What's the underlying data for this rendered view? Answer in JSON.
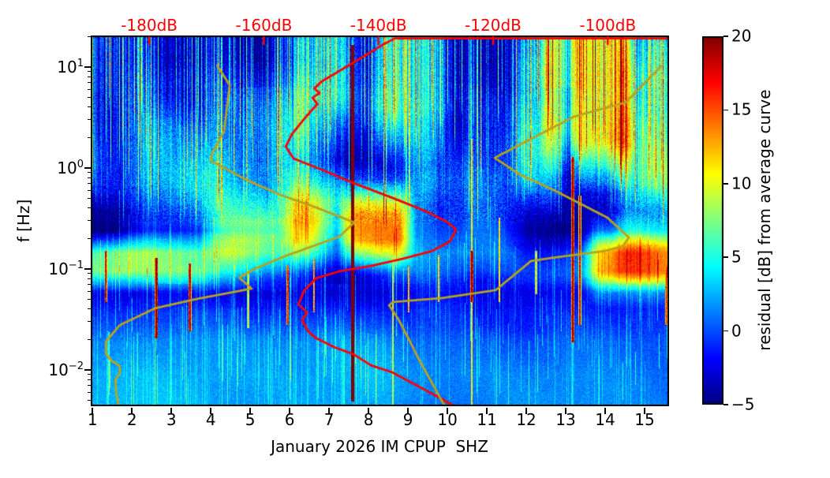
{
  "chart_data": {
    "type": "heatmap",
    "title": "",
    "xlabel": "January 2026 IM CPUP  SHZ",
    "ylabel": "f [Hz]",
    "x_axis": {
      "range_days": [
        0.955,
        15.62
      ],
      "tick_values": [
        1,
        2,
        3,
        4,
        5,
        6,
        7,
        8,
        9,
        10,
        11,
        12,
        13,
        14,
        15
      ]
    },
    "y_axis": {
      "scale": "log",
      "range_hz": [
        0.00437,
        20.5
      ],
      "major_tick_exponents": [
        1,
        0,
        -1,
        -2
      ]
    },
    "top_axis": {
      "color": "#ff0000",
      "range_db": [
        -190.2,
        -89.3
      ],
      "labels": [
        {
          "text": "-180dB",
          "db": -180
        },
        {
          "text": "-160dB",
          "db": -160
        },
        {
          "text": "-140dB",
          "db": -140
        },
        {
          "text": "-120dB",
          "db": -120
        },
        {
          "text": "-100dB",
          "db": -100
        }
      ]
    },
    "colorbar": {
      "label": "residual [dB] from average curve",
      "colormap": "jet",
      "range": [
        -5,
        20
      ],
      "tick_values": [
        20,
        15,
        10,
        5,
        0,
        -5
      ]
    },
    "series": [
      {
        "name": "red-average-curve",
        "color": "#ff0000",
        "width": 2.8,
        "points_day_hz": [
          [
            15.62,
            19.2
          ],
          [
            8.66,
            19.2
          ],
          [
            8.26,
            15.7
          ],
          [
            7.86,
            12.6
          ],
          [
            7.26,
            9.12
          ],
          [
            6.82,
            7.23
          ],
          [
            6.62,
            6.15
          ],
          [
            6.76,
            5.52
          ],
          [
            6.58,
            4.96
          ],
          [
            6.7,
            4.3
          ],
          [
            6.38,
            3.1
          ],
          [
            6.06,
            2.17
          ],
          [
            5.9,
            1.63
          ],
          [
            6.1,
            1.24
          ],
          [
            6.86,
            0.947
          ],
          [
            7.66,
            0.698
          ],
          [
            8.66,
            0.496
          ],
          [
            9.46,
            0.372
          ],
          [
            9.98,
            0.294
          ],
          [
            10.22,
            0.246
          ],
          [
            10.06,
            0.187
          ],
          [
            9.62,
            0.151
          ],
          [
            8.86,
            0.126
          ],
          [
            8.06,
            0.107
          ],
          [
            7.26,
            0.0947
          ],
          [
            6.66,
            0.0806
          ],
          [
            6.36,
            0.0604
          ],
          [
            6.22,
            0.0445
          ],
          [
            6.44,
            0.0372
          ],
          [
            6.32,
            0.031
          ],
          [
            6.48,
            0.0237
          ],
          [
            6.68,
            0.0205
          ],
          [
            7.16,
            0.0166
          ],
          [
            7.62,
            0.0143
          ],
          [
            8.06,
            0.0111
          ],
          [
            8.6,
            0.00947
          ],
          [
            9.16,
            0.00723
          ],
          [
            9.72,
            0.00552
          ],
          [
            10.22,
            0.00429
          ]
        ]
      },
      {
        "name": "olive-average-curve-left",
        "color": "#b9a21c",
        "width": 2.8,
        "points_day_hz": [
          [
            4.16,
            10.35
          ],
          [
            4.48,
            6.61
          ],
          [
            4.4,
            3.72
          ],
          [
            4.34,
            2.33
          ],
          [
            4.02,
            1.36
          ],
          [
            4.0,
            1.18
          ],
          [
            4.46,
            0.947
          ],
          [
            4.9,
            0.764
          ],
          [
            5.76,
            0.542
          ],
          [
            6.66,
            0.407
          ],
          [
            7.28,
            0.328
          ],
          [
            7.64,
            0.289
          ],
          [
            7.26,
            0.209
          ],
          [
            5.86,
            0.133
          ],
          [
            5.1,
            0.1
          ],
          [
            4.72,
            0.0821
          ],
          [
            5.04,
            0.0638
          ],
          [
            3.66,
            0.0505
          ],
          [
            2.58,
            0.0407
          ],
          [
            1.7,
            0.0279
          ],
          [
            1.34,
            0.0191
          ],
          [
            1.34,
            0.0144
          ],
          [
            1.48,
            0.0124
          ],
          [
            1.68,
            0.011
          ],
          [
            1.7,
            0.00931
          ],
          [
            1.58,
            0.00806
          ],
          [
            1.6,
            0.00615
          ],
          [
            1.66,
            0.00445
          ]
        ]
      },
      {
        "name": "olive-average-curve-right",
        "color": "#b9a21c",
        "width": 2.8,
        "points_day_hz": [
          [
            15.42,
            10.2
          ],
          [
            14.52,
            4.45
          ],
          [
            13.2,
            3.22
          ],
          [
            11.2,
            1.26
          ],
          [
            11.86,
            0.85
          ],
          [
            12.66,
            0.615
          ],
          [
            14.06,
            0.322
          ],
          [
            14.6,
            0.205
          ],
          [
            14.46,
            0.169
          ],
          [
            14.0,
            0.151
          ],
          [
            12.66,
            0.129
          ],
          [
            12.12,
            0.12
          ],
          [
            11.22,
            0.0615
          ],
          [
            9.86,
            0.0514
          ],
          [
            8.62,
            0.047
          ],
          [
            8.52,
            0.0437
          ],
          [
            8.76,
            0.0316
          ],
          [
            9.02,
            0.0202
          ],
          [
            9.3,
            0.0122
          ],
          [
            9.58,
            0.00778
          ],
          [
            9.92,
            0.00447
          ]
        ]
      }
    ],
    "spectrogram": {
      "seed": 1234567,
      "base_residual": -2.2,
      "noise_amp_upper": 2.1,
      "noise_amp_lower": 1.0,
      "clouds_amp": 1.5,
      "bands": [
        {
          "f_lo": 0.095,
          "f_hi": 0.145,
          "soft": 0.22,
          "amp_by_day": [
            [
              0.9,
              12
            ],
            [
              1.8,
              13
            ],
            [
              2.6,
              10
            ],
            [
              3.6,
              9.5
            ],
            [
              4.6,
              8
            ],
            [
              5.4,
              5
            ],
            [
              6.5,
              3.5
            ],
            [
              9,
              3
            ],
            [
              11,
              2.5
            ],
            [
              12.5,
              3
            ],
            [
              13.6,
              6
            ],
            [
              14.3,
              9
            ],
            [
              15.7,
              8
            ]
          ]
        },
        {
          "f_lo": 0.17,
          "f_hi": 0.34,
          "soft": 0.3,
          "amp_by_day": [
            [
              0.9,
              -2.5
            ],
            [
              3,
              -3
            ],
            [
              6,
              -2.8
            ],
            [
              8.6,
              -1
            ],
            [
              9.5,
              -2
            ],
            [
              12,
              -2.2
            ],
            [
              15.7,
              -2.5
            ]
          ]
        },
        {
          "f_lo": 0.042,
          "f_hi": 0.088,
          "soft": 0.35,
          "amp_by_day": [
            [
              0.9,
              -2.2
            ],
            [
              4,
              -2.5
            ],
            [
              8,
              -2.5
            ],
            [
              9.8,
              -0.8
            ],
            [
              12,
              -1.6
            ],
            [
              15.7,
              -1.8
            ]
          ]
        },
        {
          "f_lo": 0.0042,
          "f_hi": 0.038,
          "soft": 0.4,
          "amp_by_day": [
            [
              0.9,
              3.2
            ],
            [
              5,
              3.2
            ],
            [
              8.2,
              3.2
            ],
            [
              9,
              2.2
            ],
            [
              15.7,
              2.2
            ]
          ]
        },
        {
          "f_lo": 0.0042,
          "f_hi": 0.009,
          "soft": 0.5,
          "amp_by_day": [
            [
              0.9,
              1.5
            ],
            [
              15.7,
              1.2
            ]
          ]
        },
        {
          "f_lo": 0.35,
          "f_hi": 3.5,
          "soft": 0.5,
          "amp_by_day": [
            [
              0.9,
              0.5
            ],
            [
              3,
              1
            ],
            [
              6,
              1
            ],
            [
              9,
              0.5
            ],
            [
              15.7,
              0.8
            ]
          ]
        }
      ],
      "patches": [
        {
          "day": [
            13.35,
            14.5
          ],
          "f": [
            1.8,
            22
          ],
          "amp": 12,
          "soft_d": 0.3,
          "soft_f": 0.5
        },
        {
          "day": [
            12.55,
            13.2
          ],
          "f": [
            2.5,
            20
          ],
          "amp": 8,
          "soft_d": 0.3,
          "soft_f": 0.5
        },
        {
          "day": [
            8.4,
            9.8
          ],
          "f": [
            4,
            22
          ],
          "amp": 7,
          "soft_d": 0.4,
          "soft_f": 0.6
        },
        {
          "day": [
            6.3,
            7.4
          ],
          "f": [
            5,
            22
          ],
          "amp": 5,
          "soft_d": 0.4,
          "soft_f": 0.6
        },
        {
          "day": [
            11.9,
            12.55
          ],
          "f": [
            0.8,
            10
          ],
          "amp": 5,
          "soft_d": 0.4,
          "soft_f": 0.7
        },
        {
          "day": [
            14.55,
            15.7
          ],
          "f": [
            0.3,
            9
          ],
          "amp": 5,
          "soft_d": 0.4,
          "soft_f": 0.7
        },
        {
          "day": [
            2.4,
            6.4
          ],
          "f": [
            0.28,
            2.4
          ],
          "amp": 4.5,
          "soft_d": 0.8,
          "soft_f": 0.7
        },
        {
          "day": [
            4.3,
            6.6
          ],
          "f": [
            0.19,
            0.3
          ],
          "amp": 6,
          "soft_d": 0.6,
          "soft_f": 0.35
        },
        {
          "day": [
            6.2,
            8.8
          ],
          "f": [
            0.24,
            0.45
          ],
          "amp": 6.5,
          "soft_d": 0.5,
          "soft_f": 0.4
        },
        {
          "day": [
            7.6,
            8.8
          ],
          "f": [
            0.19,
            0.34
          ],
          "amp": 9,
          "soft_d": 0.4,
          "soft_f": 0.35
        },
        {
          "day": [
            13.8,
            15.7
          ],
          "f": [
            0.09,
            0.17
          ],
          "amp": 8,
          "soft_d": 0.4,
          "soft_f": 0.35
        },
        {
          "day": [
            9.3,
            11.4
          ],
          "f": [
            0.25,
            0.8
          ],
          "amp": 4,
          "soft_d": 0.6,
          "soft_f": 0.5
        },
        {
          "day": [
            9.78,
            10.32
          ],
          "f": [
            0.45,
            22
          ],
          "amp": -2.8,
          "soft_d": 0.25,
          "soft_f": 0.5
        },
        {
          "day": [
            4.55,
            5.4
          ],
          "f": [
            0.7,
            22
          ],
          "amp": -2.2,
          "soft_d": 0.3,
          "soft_f": 0.5
        },
        {
          "day": [
            11.0,
            11.6
          ],
          "f": [
            1.2,
            22
          ],
          "amp": -2.2,
          "soft_d": 0.25,
          "soft_f": 0.5
        },
        {
          "day": [
            3.0,
            3.8
          ],
          "f": [
            1.2,
            22
          ],
          "amp": -1.8,
          "soft_d": 0.3,
          "soft_f": 0.5
        },
        {
          "day": [
            13.05,
            13.3
          ],
          "f": [
            1.0,
            22
          ],
          "amp": -2.5,
          "soft_d": 0.15,
          "soft_f": 0.4
        },
        {
          "day": [
            15.1,
            15.65
          ],
          "f": [
            1.0,
            20
          ],
          "amp": 3,
          "soft_d": 0.3,
          "soft_f": 0.5
        }
      ],
      "special_streaks": [
        {
          "day": 7.6,
          "f": [
            0.0052,
            15.5
          ],
          "amp": 30,
          "w": 2.6
        },
        {
          "day": 10.62,
          "f": [
            0.0045,
            1.8
          ],
          "amp": 13,
          "w": 2
        },
        {
          "day": 10.62,
          "f": [
            0.05,
            0.14
          ],
          "amp": 26,
          "w": 3
        },
        {
          "day": 13.18,
          "f": [
            0.02,
            1.2
          ],
          "amp": 24,
          "w": 3
        },
        {
          "day": 13.36,
          "f": [
            0.03,
            0.5
          ],
          "amp": 21,
          "w": 2.5
        },
        {
          "day": 2.62,
          "f": [
            0.022,
            0.12
          ],
          "amp": 26,
          "w": 3
        },
        {
          "day": 3.47,
          "f": [
            0.026,
            0.105
          ],
          "amp": 23,
          "w": 3
        },
        {
          "day": 1.34,
          "f": [
            0.05,
            0.14
          ],
          "amp": 22,
          "w": 2.5
        },
        {
          "day": 8.62,
          "f": [
            0.0045,
            0.32
          ],
          "amp": 11,
          "w": 2
        },
        {
          "day": 5.95,
          "f": [
            0.03,
            0.1
          ],
          "amp": 20,
          "w": 2.5
        },
        {
          "day": 6.62,
          "f": [
            0.04,
            0.12
          ],
          "amp": 16,
          "w": 2
        },
        {
          "day": 9.02,
          "f": [
            0.04,
            0.1
          ],
          "amp": 15,
          "w": 2
        },
        {
          "day": 9.78,
          "f": [
            0.05,
            0.13
          ],
          "amp": 14,
          "w": 2
        },
        {
          "day": 11.32,
          "f": [
            0.05,
            0.3
          ],
          "amp": 13,
          "w": 2
        },
        {
          "day": 15.55,
          "f": [
            0.03,
            0.09
          ],
          "amp": 19,
          "w": 2.5
        },
        {
          "day": 12.25,
          "f": [
            0.06,
            0.14
          ],
          "amp": 14,
          "w": 2
        },
        {
          "day": 4.95,
          "f": [
            0.028,
            0.09
          ],
          "amp": 13,
          "w": 2
        }
      ],
      "random_streaks": {
        "upper": {
          "density": 0.55,
          "amp_max": 14,
          "dark_prob": 0.22,
          "dark_amp": -3.2
        },
        "lower": {
          "density": 0.45,
          "amp_max": 5.5
        }
      }
    }
  }
}
